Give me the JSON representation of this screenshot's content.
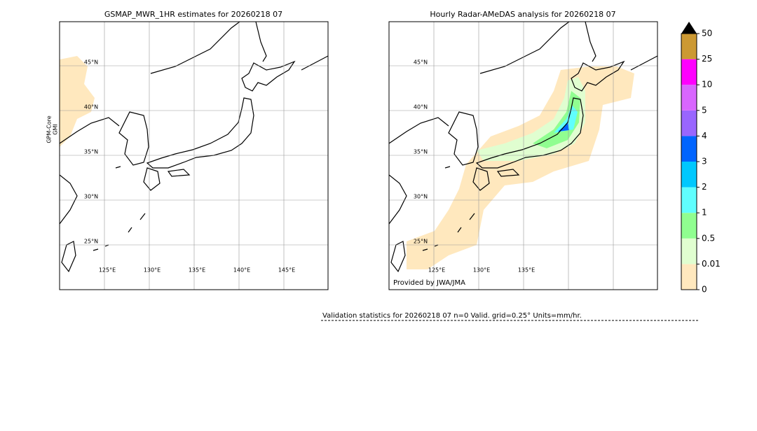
{
  "panels": [
    {
      "title": "GSMAP_MWR_1HR estimates for 20260218 07",
      "side_label": [
        "GPM-Core",
        "GMI"
      ],
      "lat_labels": [
        "45°N",
        "40°N",
        "35°N",
        "30°N",
        "25°N"
      ],
      "lon_labels": [
        "125°E",
        "130°E",
        "135°E",
        "140°E",
        "145°E"
      ]
    },
    {
      "title": "Hourly Radar-AMeDAS analysis for 20260218 07",
      "credit": "Provided by JWA/JMA",
      "lat_labels": [
        "45°N",
        "40°N",
        "35°N",
        "30°N",
        "25°N"
      ],
      "lon_labels": [
        "125°E",
        "130°E",
        "135°E"
      ]
    }
  ],
  "colorbar": {
    "levels": [
      0,
      0.01,
      0.5,
      1,
      2,
      3,
      4,
      5,
      10,
      25,
      50
    ],
    "colors": [
      "#ffe8be",
      "#e0fed0",
      "#90fe90",
      "#60fefe",
      "#00c8fe",
      "#0064fe",
      "#9966fe",
      "#d866fe",
      "#fe00fe",
      "#cc9933"
    ],
    "extend_color": "#000000"
  },
  "stats": "Validation statistics for 20260218 07  n=0 Valid. grid=0.25° Units=mm/hr."
}
